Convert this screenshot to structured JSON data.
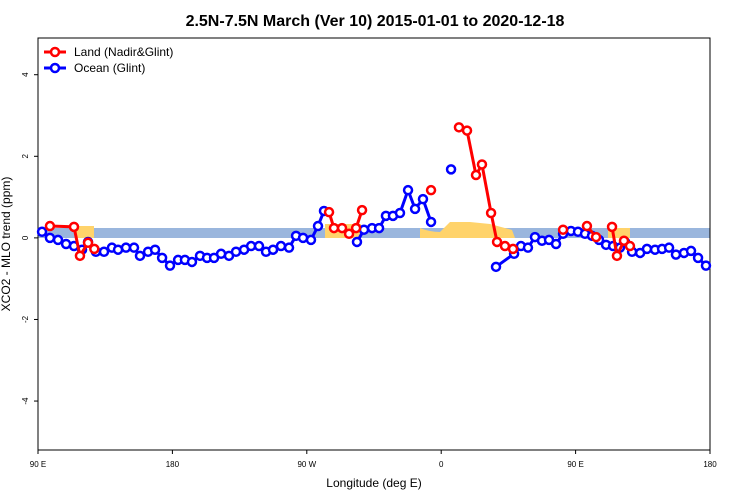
{
  "chart_data": {
    "type": "line",
    "title": "2.5N-7.5N March (Ver 10)   2015-01-01 to 2020-12-18",
    "x_label": "Longitude (deg E)",
    "y_label": "XCO2 - MLO trend (ppm)",
    "xlim": [
      90,
      540
    ],
    "xticks": [
      {
        "value": 90,
        "label": "90 E"
      },
      180,
      {
        "value": 270,
        "label": "90 W"
      },
      {
        "value": 360,
        "label": "0"
      },
      {
        "value": 450,
        "label": "90 E"
      },
      {
        "value": 540,
        "label": "180"
      }
    ],
    "ylim": [
      -5.2,
      4.9
    ],
    "yticks": [
      -4,
      -2,
      0,
      2,
      4
    ],
    "legend": "top-left",
    "series": [
      {
        "name": "Land (Nadir&Glint)",
        "color": "#ff0000",
        "x": [
          98.0,
          114.1,
          118.1,
          123.5,
          127.7,
          null,
          284.9,
          288.2,
          293.6,
          298.3,
          303.0,
          307.0,
          null,
          353.2,
          null,
          371.9,
          377.3,
          383.3,
          387.3,
          393.4,
          397.4,
          402.7,
          408.1,
          null,
          441.6,
          null,
          457.6,
          463.7,
          null,
          474.4,
          477.7,
          482.4,
          486.4
        ],
        "values": [
          0.29,
          0.27,
          -0.44,
          -0.12,
          -0.27,
          null,
          0.63,
          0.24,
          0.24,
          0.1,
          0.24,
          0.68,
          null,
          1.17,
          null,
          2.71,
          2.63,
          1.54,
          1.8,
          0.61,
          -0.1,
          -0.2,
          -0.27,
          null,
          0.2,
          null,
          0.29,
          0.02,
          null,
          0.27,
          -0.44,
          -0.07,
          -0.2
        ]
      },
      {
        "name": "Ocean (Glint)",
        "color": "#0000ff",
        "x": [
          92.7,
          98.0,
          103.4,
          108.8,
          114.1,
          119.5,
          123.5,
          128.8,
          134.2,
          139.5,
          143.6,
          148.9,
          154.3,
          158.3,
          163.7,
          168.4,
          173.1,
          178.4,
          183.8,
          188.4,
          193.1,
          198.5,
          203.2,
          207.9,
          212.6,
          217.9,
          222.6,
          228.0,
          232.7,
          238.0,
          242.7,
          247.4,
          252.7,
          258.1,
          262.8,
          267.5,
          272.8,
          277.5,
          281.5,
          null,
          303.6,
          308.3,
          313.7,
          318.4,
          323.0,
          327.7,
          332.4,
          337.8,
          342.5,
          347.8,
          353.2,
          null,
          366.6,
          null,
          396.7,
          408.8,
          413.4,
          418.1,
          422.8,
          427.5,
          432.2,
          436.9,
          441.6,
          446.9,
          451.6,
          456.3,
          461.0,
          465.7,
          470.4,
          475.1,
          479.7,
          483.1,
          487.8,
          493.2,
          497.8,
          503.2,
          507.9,
          512.6,
          517.2,
          522.6,
          527.3,
          532.0,
          537.3
        ],
        "values": [
          0.15,
          0,
          -0.05,
          -0.15,
          -0.2,
          -0.29,
          -0.1,
          -0.34,
          -0.34,
          -0.24,
          -0.29,
          -0.24,
          -0.24,
          -0.44,
          -0.34,
          -0.29,
          -0.49,
          -0.68,
          -0.54,
          -0.54,
          -0.59,
          -0.44,
          -0.49,
          -0.49,
          -0.39,
          -0.44,
          -0.34,
          -0.29,
          -0.2,
          -0.2,
          -0.34,
          -0.29,
          -0.2,
          -0.24,
          0.05,
          0,
          -0.05,
          0.29,
          0.66,
          null,
          -0.1,
          0.2,
          0.24,
          0.24,
          0.54,
          0.54,
          0.61,
          1.17,
          0.71,
          0.95,
          0.39,
          null,
          1.68,
          null,
          -0.71,
          -0.39,
          -0.2,
          -0.24,
          0.02,
          -0.07,
          -0.05,
          -0.15,
          0.1,
          0.17,
          0.15,
          0.1,
          0.05,
          -0.05,
          -0.17,
          -0.2,
          -0.24,
          -0.1,
          -0.34,
          -0.37,
          -0.27,
          -0.29,
          -0.27,
          -0.24,
          -0.41,
          -0.37,
          -0.32,
          -0.49,
          -0.68
        ]
      }
    ]
  }
}
